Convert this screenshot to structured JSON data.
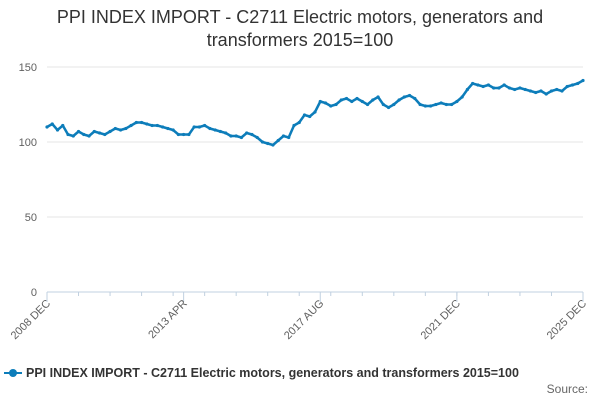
{
  "title_lines": [
    "PPI INDEX IMPORT - C2711 Electric motors, generators and",
    "transformers 2015=100"
  ],
  "legend_label": "PPI INDEX IMPORT - C2711 Electric motors, generators and transformers 2015=100",
  "source_label": "Source:",
  "series_color": "#0d7dba",
  "chart_data": {
    "type": "line",
    "title": "PPI INDEX IMPORT - C2711 Electric motors, generators and transformers 2015=100",
    "ylim": [
      0,
      150
    ],
    "yticks": [
      0,
      50,
      100,
      150
    ],
    "xlim": [
      "2008-12",
      "2025-12"
    ],
    "xtick_labels": [
      "2008 DEC",
      "2013 APR",
      "2017 AUG",
      "2021 DEC",
      "2025 DEC"
    ],
    "xtick_positions": [
      "2008-12",
      "2013-04",
      "2017-08",
      "2021-12",
      "2025-12"
    ],
    "grid": "horizontal",
    "legend_position": "bottom",
    "series": [
      {
        "name": "PPI INDEX IMPORT - C2711 Electric motors, generators and transformers 2015=100",
        "x": [
          "2008-12",
          "2009-02",
          "2009-04",
          "2009-06",
          "2009-08",
          "2009-10",
          "2009-12",
          "2010-02",
          "2010-04",
          "2010-06",
          "2010-08",
          "2010-10",
          "2010-12",
          "2011-02",
          "2011-04",
          "2011-06",
          "2011-08",
          "2011-10",
          "2011-12",
          "2012-02",
          "2012-04",
          "2012-06",
          "2012-08",
          "2012-10",
          "2012-12",
          "2013-02",
          "2013-04",
          "2013-06",
          "2013-08",
          "2013-10",
          "2013-12",
          "2014-02",
          "2014-04",
          "2014-06",
          "2014-08",
          "2014-10",
          "2014-12",
          "2015-02",
          "2015-04",
          "2015-06",
          "2015-08",
          "2015-10",
          "2015-12",
          "2016-02",
          "2016-04",
          "2016-06",
          "2016-08",
          "2016-10",
          "2016-12",
          "2017-02",
          "2017-04",
          "2017-06",
          "2017-08",
          "2017-10",
          "2017-12",
          "2018-02",
          "2018-04",
          "2018-06",
          "2018-08",
          "2018-10",
          "2018-12",
          "2019-02",
          "2019-04",
          "2019-06",
          "2019-08",
          "2019-10",
          "2019-12",
          "2020-02",
          "2020-04",
          "2020-06",
          "2020-08",
          "2020-10",
          "2020-12",
          "2021-02",
          "2021-04",
          "2021-06",
          "2021-08",
          "2021-10",
          "2021-12",
          "2022-02",
          "2022-04",
          "2022-06",
          "2022-08",
          "2022-10",
          "2022-12",
          "2023-02",
          "2023-04",
          "2023-06",
          "2023-08",
          "2023-10",
          "2023-12",
          "2024-02",
          "2024-04",
          "2024-06",
          "2024-08",
          "2024-10",
          "2024-12",
          "2025-02",
          "2025-04",
          "2025-06",
          "2025-08",
          "2025-10",
          "2025-12"
        ],
        "values": [
          110,
          112,
          108,
          111,
          105,
          104,
          107,
          105,
          104,
          107,
          106,
          105,
          107,
          109,
          108,
          109,
          111,
          113,
          113,
          112,
          111,
          111,
          110,
          109,
          108,
          105,
          105,
          105,
          110,
          110,
          111,
          109,
          108,
          107,
          106,
          104,
          104,
          103,
          106,
          105,
          103,
          100,
          99,
          98,
          101,
          104,
          103,
          111,
          113,
          118,
          117,
          120,
          127,
          126,
          124,
          125,
          128,
          129,
          127,
          129,
          127,
          125,
          128,
          130,
          125,
          123,
          125,
          128,
          130,
          131,
          129,
          125,
          124,
          124,
          125,
          126,
          125,
          125,
          127,
          130,
          135,
          139,
          138,
          137,
          138,
          136,
          136,
          138,
          136,
          135,
          136,
          135,
          134,
          133,
          134,
          132,
          134,
          135,
          134,
          137,
          138,
          139,
          141
        ]
      }
    ]
  }
}
